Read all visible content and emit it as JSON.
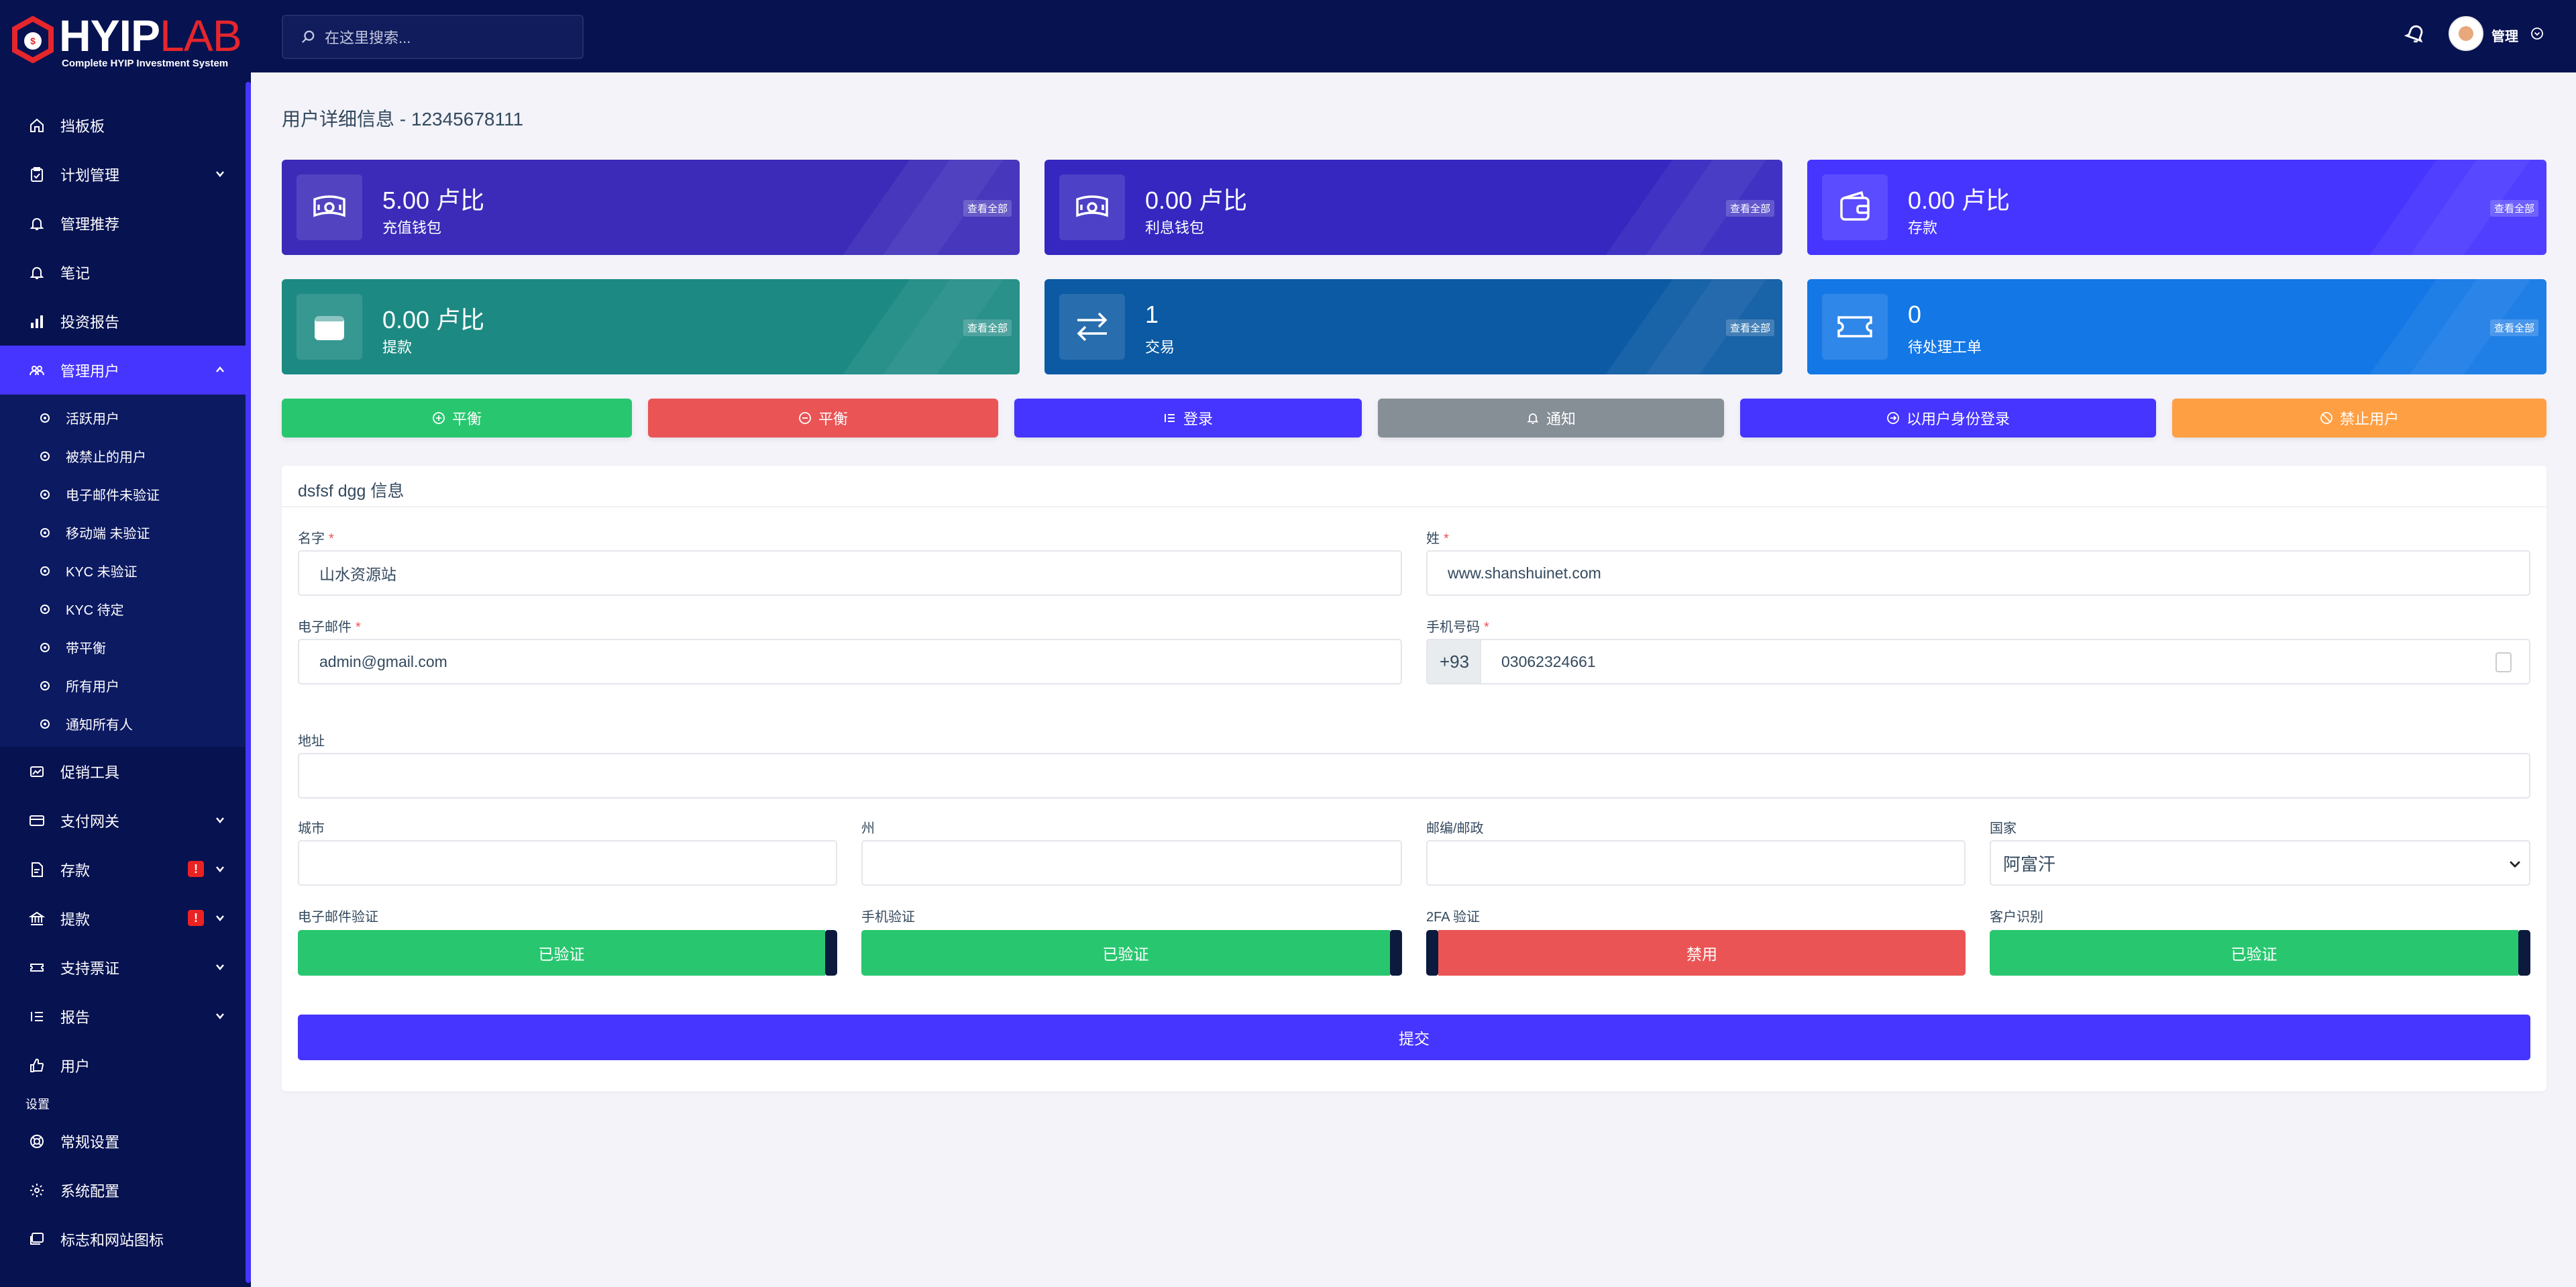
{
  "brand": {
    "word1": "HYIP",
    "word2": "LAB",
    "tagline": "Complete HYIP Investment System"
  },
  "sidebar": {
    "items": [
      {
        "label": "挡板板",
        "icon": "home-icon"
      },
      {
        "label": "计划管理",
        "icon": "clipboard-icon"
      },
      {
        "label": "管理推荐",
        "icon": "bell-icon"
      },
      {
        "label": "笔记",
        "icon": "bell-icon"
      },
      {
        "label": "投资报告",
        "icon": "bar-chart-icon"
      },
      {
        "label": "管理用户",
        "icon": "users-icon"
      }
    ],
    "sub_items": [
      "活跃用户",
      "被禁止的用户",
      "电子邮件未验证",
      "移动端 未验证",
      "KYC 未验证",
      "KYC 待定",
      "带平衡",
      "所有用户",
      "通知所有人"
    ],
    "items2": [
      {
        "label": "促销工具",
        "icon": "image-icon"
      },
      {
        "label": "支付网关",
        "icon": "credit-card-icon"
      },
      {
        "label": "存款",
        "icon": "file-invoice-icon",
        "alert": "!"
      },
      {
        "label": "提款",
        "icon": "bank-icon",
        "alert": "!"
      },
      {
        "label": "支持票证",
        "icon": "ticket-icon"
      },
      {
        "label": "报告",
        "icon": "list-icon"
      },
      {
        "label": "用户",
        "icon": "thumbs-up-icon"
      }
    ],
    "section_label": "设置",
    "settings": [
      {
        "label": "常规设置",
        "icon": "life-ring-icon"
      },
      {
        "label": "系统配置",
        "icon": "gear-icon"
      },
      {
        "label": "标志和网站图标",
        "icon": "images-icon"
      }
    ]
  },
  "topbar": {
    "search_placeholder": "在这里搜索...",
    "admin_label": "管理"
  },
  "page": {
    "title": "用户详细信息 - 12345678111"
  },
  "cards": [
    {
      "amount": "5.00 卢比",
      "label": "充值钱包",
      "view_all": "查看全部",
      "color": "#3b2bb8",
      "icon": "money-icon"
    },
    {
      "amount": "0.00 卢比",
      "label": "利息钱包",
      "view_all": "查看全部",
      "color": "#3527c0",
      "icon": "money-icon"
    },
    {
      "amount": "0.00 卢比",
      "label": "存款",
      "view_all": "查看全部",
      "color": "#4634ff",
      "icon": "wallet-icon"
    },
    {
      "amount": "0.00 卢比",
      "label": "提款",
      "view_all": "查看全部",
      "color": "#1c8a83",
      "icon": "wallet-icon"
    },
    {
      "amount": "1",
      "label": "交易",
      "view_all": "查看全部",
      "color": "#0b5aa3",
      "icon": "exchange-icon"
    },
    {
      "amount": "0",
      "label": "待处理工单",
      "view_all": "查看全部",
      "color": "#1377e6",
      "icon": "ticket-icon"
    }
  ],
  "actions": [
    {
      "label": "平衡",
      "color": "#28c76f",
      "icon": "plus-circle-icon"
    },
    {
      "label": "平衡",
      "color": "#ea5455",
      "icon": "minus-circle-icon"
    },
    {
      "label": "登录",
      "color": "#4634ff",
      "icon": "list-icon"
    },
    {
      "label": "通知",
      "color": "#868e96",
      "icon": "bell-icon"
    },
    {
      "label": "以用户身份登录",
      "color": "#4634ff",
      "icon": "login-icon"
    },
    {
      "label": "禁止用户",
      "color": "#ff9f43",
      "icon": "ban-icon"
    }
  ],
  "form": {
    "title": "dsfsf dgg 信息",
    "first_name_label": "名字",
    "first_name": "山水资源站",
    "last_name_label": "姓",
    "last_name": "www.shanshuinet.com",
    "email_label": "电子邮件",
    "email": "admin@gmail.com",
    "mobile_label": "手机号码",
    "mobile_prefix": "+93",
    "mobile": "03062324661",
    "required_mark": "*",
    "address_label": "地址",
    "address": "",
    "city_label": "城市",
    "city": "",
    "state_label": "州",
    "state": "",
    "zip_label": "邮编/邮政",
    "zip": "",
    "country_label": "国家",
    "country": "阿富汗",
    "email_verify_label": "电子邮件验证",
    "email_verify": "已验证",
    "mobile_verify_label": "手机验证",
    "mobile_verify": "已验证",
    "twofa_label": "2FA 验证",
    "twofa": "禁用",
    "kyc_label": "客户识别",
    "kyc": "已验证",
    "submit": "提交"
  }
}
